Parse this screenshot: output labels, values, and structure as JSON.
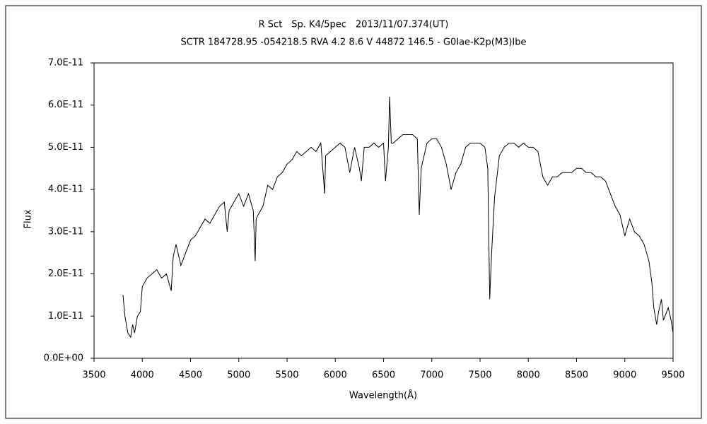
{
  "chart_data": {
    "type": "line",
    "title": "R Sct　Sp. K4/5pec　2013/11/07.374(UT)",
    "subtitle": "SCTR 184728.95 -054218.5 RVA 4.2 8.6 V 44872 146.5 - G0Iae-K2p(M3)Ibe",
    "xlabel": "Wavelength(Å)",
    "ylabel": "Flux",
    "color": "#000000",
    "grid": false,
    "xlim": [
      3500,
      9500
    ],
    "xticks": [
      3500,
      4000,
      4500,
      5000,
      5500,
      6000,
      6500,
      7000,
      7500,
      8000,
      8500,
      9000,
      9500
    ],
    "ylim": [
      0,
      7e-11
    ],
    "yticks": [
      {
        "value": 0,
        "label": "0.0E+00"
      },
      {
        "value": 1e-11,
        "label": "1.0E-11"
      },
      {
        "value": 2e-11,
        "label": "2.0E-11"
      },
      {
        "value": 3e-11,
        "label": "3.0E-11"
      },
      {
        "value": 4e-11,
        "label": "4.0E-11"
      },
      {
        "value": 5e-11,
        "label": "5.0E-11"
      },
      {
        "value": 6e-11,
        "label": "6.0E-11"
      },
      {
        "value": 7e-11,
        "label": "7.0E-11"
      }
    ],
    "x": [
      3800,
      3820,
      3850,
      3880,
      3900,
      3920,
      3950,
      3980,
      4000,
      4050,
      4100,
      4150,
      4200,
      4250,
      4300,
      4320,
      4350,
      4400,
      4450,
      4500,
      4550,
      4600,
      4650,
      4700,
      4750,
      4800,
      4850,
      4880,
      4900,
      4950,
      5000,
      5050,
      5100,
      5150,
      5170,
      5180,
      5200,
      5250,
      5300,
      5350,
      5400,
      5450,
      5500,
      5550,
      5600,
      5650,
      5700,
      5750,
      5800,
      5850,
      5890,
      5900,
      5950,
      6000,
      6050,
      6100,
      6150,
      6200,
      6250,
      6270,
      6300,
      6350,
      6400,
      6450,
      6500,
      6520,
      6550,
      6563,
      6580,
      6600,
      6650,
      6700,
      6750,
      6800,
      6850,
      6870,
      6890,
      6950,
      7000,
      7050,
      7100,
      7150,
      7200,
      7250,
      7300,
      7350,
      7400,
      7450,
      7500,
      7550,
      7580,
      7600,
      7620,
      7650,
      7700,
      7750,
      7800,
      7850,
      7900,
      7950,
      8000,
      8050,
      8100,
      8150,
      8200,
      8250,
      8300,
      8350,
      8400,
      8450,
      8500,
      8550,
      8600,
      8650,
      8700,
      8750,
      8800,
      8850,
      8900,
      8950,
      9000,
      9050,
      9100,
      9150,
      9200,
      9250,
      9280,
      9300,
      9330,
      9350,
      9380,
      9400,
      9450,
      9480,
      9500
    ],
    "values": [
      1.5e-11,
      1e-11,
      6e-12,
      5e-12,
      8e-12,
      6e-12,
      1e-11,
      1.1e-11,
      1.7e-11,
      1.9e-11,
      2e-11,
      2.1e-11,
      1.9e-11,
      2e-11,
      1.6e-11,
      2.4e-11,
      2.7e-11,
      2.2e-11,
      2.5e-11,
      2.8e-11,
      2.9e-11,
      3.1e-11,
      3.3e-11,
      3.2e-11,
      3.4e-11,
      3.6e-11,
      3.7e-11,
      3e-11,
      3.5e-11,
      3.7e-11,
      3.9e-11,
      3.6e-11,
      3.9e-11,
      3.5e-11,
      2.3e-11,
      3.3e-11,
      3.4e-11,
      3.6e-11,
      4.1e-11,
      4e-11,
      4.3e-11,
      4.4e-11,
      4.6e-11,
      4.7e-11,
      4.9e-11,
      4.8e-11,
      4.9e-11,
      5e-11,
      4.9e-11,
      5.1e-11,
      3.9e-11,
      4.8e-11,
      4.9e-11,
      5e-11,
      5.1e-11,
      5e-11,
      4.4e-11,
      5e-11,
      4.5e-11,
      4.2e-11,
      5e-11,
      5e-11,
      5.1e-11,
      5e-11,
      5.1e-11,
      4.2e-11,
      5e-11,
      6.2e-11,
      5.1e-11,
      5.1e-11,
      5.2e-11,
      5.3e-11,
      5.3e-11,
      5.3e-11,
      5.2e-11,
      3.4e-11,
      4.5e-11,
      5.1e-11,
      5.2e-11,
      5.2e-11,
      5e-11,
      4.6e-11,
      4e-11,
      4.4e-11,
      4.6e-11,
      5e-11,
      5.1e-11,
      5.1e-11,
      5.1e-11,
      5e-11,
      4.5e-11,
      1.4e-11,
      2.5e-11,
      3.8e-11,
      4.8e-11,
      5e-11,
      5.1e-11,
      5.1e-11,
      5e-11,
      5.1e-11,
      5e-11,
      5e-11,
      4.9e-11,
      4.3e-11,
      4.1e-11,
      4.3e-11,
      4.3e-11,
      4.4e-11,
      4.4e-11,
      4.4e-11,
      4.5e-11,
      4.5e-11,
      4.4e-11,
      4.4e-11,
      4.3e-11,
      4.3e-11,
      4.2e-11,
      3.9e-11,
      3.6e-11,
      3.4e-11,
      2.9e-11,
      3.3e-11,
      3e-11,
      2.9e-11,
      2.7e-11,
      2.3e-11,
      1.8e-11,
      1.2e-11,
      8e-12,
      1.1e-11,
      1.4e-11,
      9e-12,
      1.2e-11,
      9e-12,
      6e-12
    ]
  }
}
